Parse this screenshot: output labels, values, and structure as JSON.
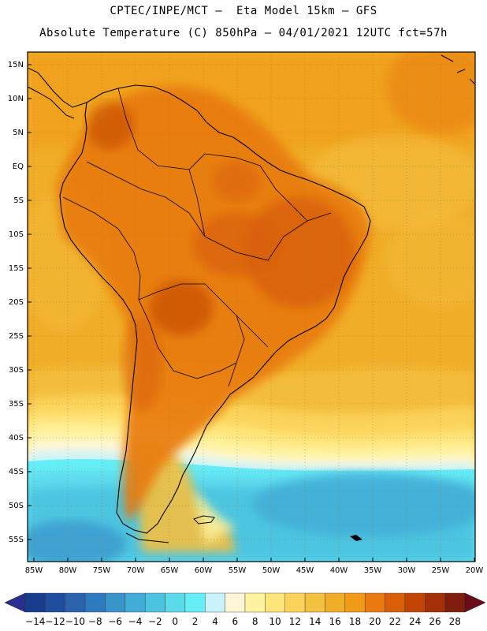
{
  "header": {
    "line1": "CPTEC/INPE/MCT –  Eta Model 15km – GFS",
    "line2": "Absolute Temperature (C) 850hPa – 04/01/2021 12UTC fct=57h"
  },
  "map": {
    "lat_labels": [
      "15N",
      "10N",
      "5N",
      "EQ",
      "5S",
      "10S",
      "15S",
      "20S",
      "25S",
      "30S",
      "35S",
      "40S",
      "45S",
      "50S",
      "55S"
    ],
    "lon_labels": [
      "85W",
      "80W",
      "75W",
      "70W",
      "65W",
      "60W",
      "55W",
      "50W",
      "45W",
      "40W",
      "35W",
      "30W",
      "25W",
      "20W"
    ],
    "lat_range": [
      -58,
      17
    ],
    "lon_range": [
      -86,
      -20
    ],
    "regions": {
      "ocean_north": "warm orange (16-18 C)",
      "continent_interior": "hot dark orange (20-24 C)",
      "southern_ocean": "cold cyan-blue (0 to -6 C)"
    }
  },
  "colorbar": {
    "labels": [
      "-14",
      "-12",
      "-10",
      "-8",
      "-6",
      "-4",
      "-2",
      "0",
      "2",
      "4",
      "6",
      "8",
      "10",
      "12",
      "14",
      "16",
      "18",
      "20",
      "22",
      "24",
      "26",
      "28"
    ],
    "colors": [
      "#1a3c8c",
      "#1f4e9e",
      "#2b64ad",
      "#2f7bbf",
      "#3a93c9",
      "#42abd6",
      "#4cc3e0",
      "#5dd9ec",
      "#66eef7",
      "#c8f3fa",
      "#fff6d8",
      "#fff3a0",
      "#ffe57a",
      "#fbd35a",
      "#f4c040",
      "#f0ad28",
      "#f09a18",
      "#e87a10",
      "#d95f08",
      "#c24505",
      "#a33008",
      "#7e1d0c"
    ],
    "low_color": "#2a2f8f",
    "high_color": "#6b0a1a"
  }
}
